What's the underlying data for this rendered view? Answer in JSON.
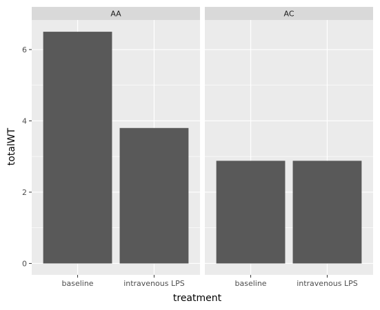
{
  "chart_data": {
    "type": "bar",
    "faceted": true,
    "facets": [
      {
        "name": "AA",
        "categories": [
          "baseline",
          "intravenous LPS"
        ],
        "values": [
          6.5,
          3.8
        ]
      },
      {
        "name": "AC",
        "categories": [
          "baseline",
          "intravenous LPS"
        ],
        "values": [
          2.88,
          2.88
        ]
      }
    ],
    "xlabel": "treatment",
    "ylabel": "totalWT",
    "ylim": [
      -0.32,
      6.83
    ],
    "yticks": [
      0,
      2,
      4,
      6
    ],
    "grid": true,
    "colors": {
      "bar": "#595959",
      "panel_background": "#ebebeb",
      "strip_background": "#d9d9d9",
      "gridline": "#ffffff"
    }
  }
}
